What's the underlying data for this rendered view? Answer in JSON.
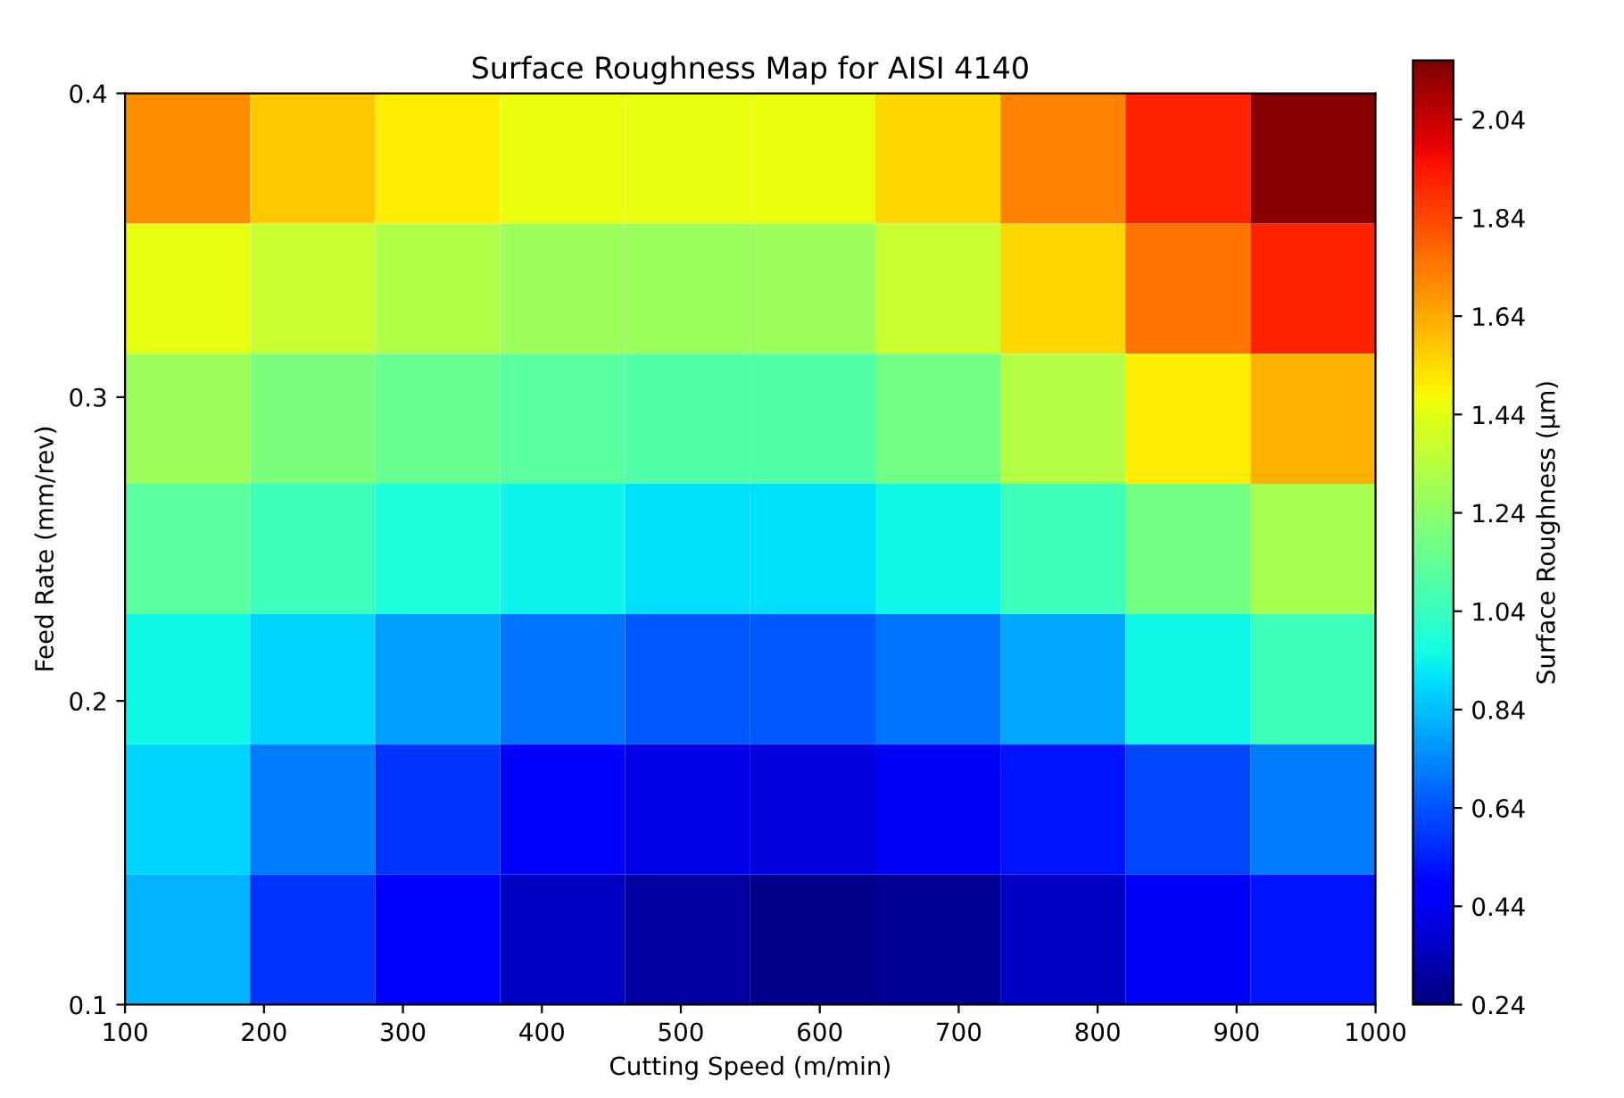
{
  "chart_data": {
    "type": "heatmap",
    "title": "Surface Roughness Map for AISI 4140",
    "xlabel": "Cutting Speed (m/min)",
    "ylabel": "Feed Rate (mm/rev)",
    "clabel": "Surface Roughness (µm)",
    "xlim": [
      100,
      1000
    ],
    "xticks": [
      100,
      200,
      300,
      400,
      500,
      600,
      700,
      800,
      900,
      1000
    ],
    "ylim": [
      0.1,
      0.4
    ],
    "yticks": [
      0.1,
      0.2,
      0.3,
      0.4
    ],
    "clim": [
      0.24,
      2.16
    ],
    "cticks": [
      0.24,
      0.44,
      0.64,
      0.84,
      1.04,
      1.24,
      1.44,
      1.64,
      1.84,
      2.04
    ],
    "cells": [
      [
        1.7,
        1.58,
        1.5,
        1.46,
        1.45,
        1.46,
        1.55,
        1.72,
        1.92,
        2.14
      ],
      [
        1.45,
        1.38,
        1.32,
        1.28,
        1.27,
        1.28,
        1.38,
        1.55,
        1.75,
        1.92
      ],
      [
        1.28,
        1.2,
        1.15,
        1.12,
        1.1,
        1.1,
        1.18,
        1.33,
        1.5,
        1.62
      ],
      [
        1.12,
        1.05,
        0.98,
        0.94,
        0.9,
        0.9,
        0.95,
        1.05,
        1.18,
        1.3
      ],
      [
        0.95,
        0.88,
        0.78,
        0.7,
        0.65,
        0.65,
        0.7,
        0.8,
        0.95,
        1.05
      ],
      [
        0.88,
        0.72,
        0.58,
        0.48,
        0.42,
        0.4,
        0.44,
        0.52,
        0.62,
        0.72
      ],
      [
        0.82,
        0.58,
        0.45,
        0.36,
        0.3,
        0.26,
        0.28,
        0.36,
        0.44,
        0.52
      ]
    ]
  }
}
